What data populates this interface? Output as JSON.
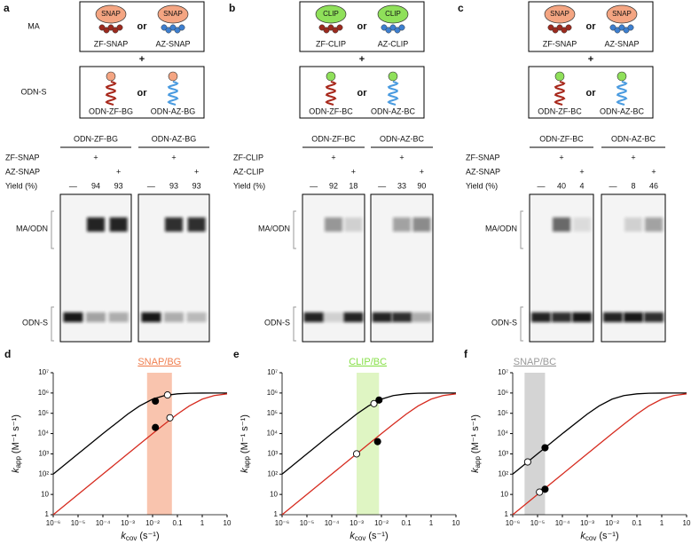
{
  "side_labels": {
    "ma": "MA",
    "odn": "ODN-S"
  },
  "panels": [
    {
      "letter": "a",
      "tags": [
        "SNAP",
        "SNAP"
      ],
      "proteins": [
        "ZF-SNAP",
        "AZ-SNAP"
      ],
      "or": "or",
      "plus": "+",
      "odn_or": "or",
      "odns": [
        "ODN-ZF-BG",
        "ODN-AZ-BG"
      ],
      "gel": {
        "headers": [
          "ODN-ZF-BG",
          "ODN-AZ-BG"
        ],
        "rows": [
          "ZF-SNAP",
          "AZ-SNAP",
          "Yield (%)"
        ],
        "lanes": [
          [
            null,
            "+",
            null,
            null,
            "+",
            null
          ],
          [
            null,
            null,
            "+",
            null,
            null,
            "+"
          ],
          [
            "—",
            94,
            93,
            "—",
            93,
            93
          ]
        ],
        "band_labels": [
          "MA/ODN",
          "ODN-S"
        ]
      }
    },
    {
      "letter": "b",
      "tags": [
        "CLIP",
        "CLIP"
      ],
      "proteins": [
        "ZF-CLIP",
        "AZ-CLIP"
      ],
      "or": "or",
      "plus": "+",
      "odn_or": "or",
      "odns": [
        "ODN-ZF-BC",
        "ODN-AZ-BC"
      ],
      "gel": {
        "headers": [
          "ODN-ZF-BC",
          "ODN-AZ-BC"
        ],
        "rows": [
          "ZF-CLIP",
          "AZ-CLIP",
          "Yield (%)"
        ],
        "lanes": [
          [
            null,
            "+",
            null,
            null,
            "+",
            null
          ],
          [
            null,
            null,
            "+",
            null,
            null,
            "+"
          ],
          [
            "—",
            92,
            18,
            "—",
            33,
            90
          ]
        ],
        "band_labels": [
          "MA/ODN",
          "ODN-S"
        ]
      }
    },
    {
      "letter": "c",
      "tags": [
        "SNAP",
        "SNAP"
      ],
      "proteins": [
        "ZF-SNAP",
        "AZ-SNAP"
      ],
      "or": "or",
      "plus": "+",
      "odn_or": "or",
      "odns": [
        "ODN-ZF-BC",
        "ODN-AZ-BC"
      ],
      "gel": {
        "headers": [
          "ODN-ZF-BC",
          "ODN-AZ-BC"
        ],
        "rows": [
          "ZF-SNAP",
          "AZ-SNAP",
          "Yield (%)"
        ],
        "lanes": [
          [
            null,
            "+",
            null,
            null,
            "+",
            null
          ],
          [
            null,
            null,
            "+",
            null,
            null,
            "+"
          ],
          [
            "—",
            40,
            4,
            "—",
            8,
            46
          ]
        ],
        "band_labels": [
          "MA/ODN",
          "ODN-S"
        ]
      }
    }
  ],
  "chart_data": [
    {
      "type": "line",
      "letter": "d",
      "band_label": "SNAP/BG",
      "band": [
        0.006,
        0.06
      ],
      "band_color": "#f9c4ae",
      "band_label_color": "#f07f50",
      "x": [
        1e-06,
        1e-05,
        0.0001,
        0.001,
        0.003,
        0.01,
        0.03,
        0.1,
        0.3,
        1,
        3,
        10
      ],
      "series": [
        {
          "color": "#000000",
          "values": [
            100,
            1000,
            9900,
            91000,
            230000,
            500000,
            750000,
            910000,
            970000,
            990000,
            1000000,
            1000000
          ]
        },
        {
          "color": "#d62b1f",
          "values": [
            1,
            10,
            100,
            1000,
            2990,
            9900,
            29000,
            91000,
            230000,
            500000,
            750000,
            910000
          ]
        }
      ],
      "markers": {
        "x": [
          0.013,
          0.04,
          0.013,
          0.05
        ],
        "values": [
          400000,
          800000,
          20000,
          60000
        ],
        "filled": [
          true,
          false,
          true,
          false
        ]
      },
      "xlog": true,
      "ylog": true,
      "xlim": [
        1e-06,
        10
      ],
      "ylim": [
        1,
        10000000
      ],
      "xticks": [
        {
          "value": 1e-06,
          "label": "10⁻⁶"
        },
        {
          "value": 1e-05,
          "label": "10⁻⁵"
        },
        {
          "value": 0.0001,
          "label": "10⁻⁴"
        },
        {
          "value": 0.001,
          "label": "10⁻³"
        },
        {
          "value": 0.01,
          "label": "10⁻²"
        },
        0.1,
        1,
        10
      ],
      "yticks": [
        1,
        10,
        {
          "value": 100,
          "label": "10²"
        },
        {
          "value": 1000,
          "label": "10³"
        },
        {
          "value": 10000,
          "label": "10⁴"
        },
        {
          "value": 100000,
          "label": "10⁵"
        },
        {
          "value": 1000000,
          "label": "10⁶"
        },
        {
          "value": 10000000,
          "label": "10⁷"
        }
      ],
      "x_label": {
        "symbol": "k",
        "subscript": "cov",
        "unit": "(s⁻¹)"
      },
      "y_label": {
        "symbol": "k",
        "subscript": "app",
        "unit": "(M⁻¹ s⁻¹)"
      }
    },
    {
      "type": "line",
      "letter": "e",
      "band_label": "CLIP/BC",
      "band": [
        0.001,
        0.008
      ],
      "band_color": "#dff5c3",
      "band_label_color": "#88e04a",
      "x": [
        1e-06,
        1e-05,
        0.0001,
        0.001,
        0.003,
        0.01,
        0.03,
        0.1,
        0.3,
        1,
        3,
        10
      ],
      "series": [
        {
          "color": "#000000",
          "values": [
            100,
            1000,
            9900,
            91000,
            230000,
            500000,
            750000,
            910000,
            970000,
            990000,
            1000000,
            1000000
          ]
        },
        {
          "color": "#d62b1f",
          "values": [
            1,
            10,
            100,
            1000,
            2990,
            9900,
            29000,
            91000,
            230000,
            500000,
            750000,
            910000
          ]
        }
      ],
      "markers": {
        "x": [
          0.005,
          0.008,
          0.001,
          0.007
        ],
        "values": [
          300000,
          450000,
          1000,
          4000
        ],
        "filled": [
          false,
          true,
          false,
          true
        ]
      },
      "xlog": true,
      "ylog": true,
      "xlim": [
        1e-06,
        10
      ],
      "ylim": [
        1,
        10000000
      ],
      "xticks": [
        {
          "value": 1e-06,
          "label": "10⁻⁶"
        },
        {
          "value": 1e-05,
          "label": "10⁻⁵"
        },
        {
          "value": 0.0001,
          "label": "10⁻⁴"
        },
        {
          "value": 0.001,
          "label": "10⁻³"
        },
        {
          "value": 0.01,
          "label": "10⁻²"
        },
        0.1,
        1,
        10
      ],
      "yticks": [
        1,
        10,
        {
          "value": 100,
          "label": "10²"
        },
        {
          "value": 1000,
          "label": "10³"
        },
        {
          "value": 10000,
          "label": "10⁴"
        },
        {
          "value": 100000,
          "label": "10⁵"
        },
        {
          "value": 1000000,
          "label": "10⁶"
        },
        {
          "value": 10000000,
          "label": "10⁷"
        }
      ],
      "x_label": {
        "symbol": "k",
        "subscript": "cov",
        "unit": "(s⁻¹)"
      },
      "y_label": {
        "symbol": "k",
        "subscript": "app",
        "unit": "(M⁻¹ s⁻¹)"
      }
    },
    {
      "type": "line",
      "letter": "f",
      "band_label": "SNAP/BC",
      "band": [
        3e-06,
        2e-05
      ],
      "band_color": "#d4d4d4",
      "band_label_color": "#9a9a9a",
      "x": [
        1e-06,
        1e-05,
        0.0001,
        0.001,
        0.003,
        0.01,
        0.03,
        0.1,
        0.3,
        1,
        3,
        10
      ],
      "series": [
        {
          "color": "#000000",
          "values": [
            100,
            1000,
            9900,
            91000,
            230000,
            500000,
            750000,
            910000,
            970000,
            990000,
            1000000,
            1000000
          ]
        },
        {
          "color": "#d62b1f",
          "values": [
            1,
            10,
            100,
            1000,
            2990,
            9900,
            29000,
            91000,
            230000,
            500000,
            750000,
            910000
          ]
        }
      ],
      "markers": {
        "x": [
          4e-06,
          2e-05,
          1.2e-05,
          2e-05
        ],
        "values": [
          400,
          2000,
          13,
          18
        ],
        "filled": [
          false,
          true,
          false,
          true
        ]
      },
      "xlog": true,
      "ylog": true,
      "xlim": [
        1e-06,
        10
      ],
      "ylim": [
        1,
        10000000
      ],
      "xticks": [
        {
          "value": 1e-06,
          "label": "10⁻⁶"
        },
        {
          "value": 1e-05,
          "label": "10⁻⁵"
        },
        {
          "value": 0.0001,
          "label": "10⁻⁴"
        },
        {
          "value": 0.001,
          "label": "10⁻³"
        },
        {
          "value": 0.01,
          "label": "10⁻²"
        },
        0.1,
        1,
        10
      ],
      "yticks": [
        1,
        10,
        {
          "value": 100,
          "label": "10²"
        },
        {
          "value": 1000,
          "label": "10³"
        },
        {
          "value": 10000,
          "label": "10⁴"
        },
        {
          "value": 100000,
          "label": "10⁵"
        },
        {
          "value": 1000000,
          "label": "10⁶"
        },
        {
          "value": 10000000,
          "label": "10⁷"
        }
      ],
      "x_label": {
        "symbol": "k",
        "subscript": "cov",
        "unit": "(s⁻¹)"
      },
      "y_label": {
        "symbol": "k",
        "subscript": "app",
        "unit": "(M⁻¹ s⁻¹)"
      }
    }
  ]
}
